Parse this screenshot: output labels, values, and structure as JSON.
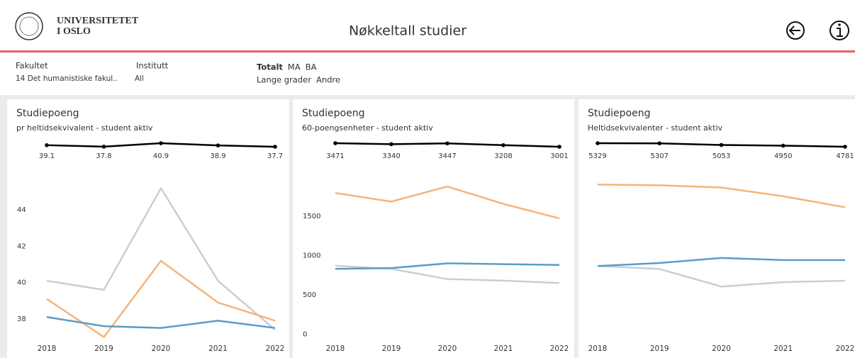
{
  "header": {
    "logo_line1": "UNIVERSITETET",
    "logo_line2": "I OSLO",
    "title": "Nøkkeltall studier"
  },
  "filters": [
    {
      "label": "Fakultet",
      "value": "14 Det humanistiske fakul.."
    },
    {
      "label": "Institutt",
      "value": "All"
    }
  ],
  "legend": [
    {
      "label": "Totalt",
      "color": "#222222"
    },
    {
      "label": "MA",
      "color": "#5ba3cf"
    },
    {
      "label": "BA",
      "color": "#f5b47a"
    },
    {
      "label": "Lange grader",
      "color": "#555555"
    },
    {
      "label": "Andre",
      "color": "#9a9a9a"
    }
  ],
  "chart_data": [
    {
      "type": "line",
      "title": "Studiepoeng",
      "subtitle": "pr heltidsekvivalent - student aktiv",
      "categories": [
        "2018",
        "2019",
        "2020",
        "2021",
        "2022"
      ],
      "total": {
        "color": "#000000",
        "values": [
          39.1,
          37.8,
          40.9,
          38.9,
          37.7
        ]
      },
      "series": [
        {
          "color": "#c9ced6",
          "values": [
            40.1,
            39.6,
            45.2,
            40.1,
            37.4
          ]
        },
        {
          "color": "#f5b47a",
          "values": [
            39.1,
            37.0,
            41.2,
            38.9,
            37.9
          ]
        },
        {
          "color": "#5b9bc8",
          "values": [
            38.1,
            37.6,
            37.5,
            37.9,
            37.5
          ]
        }
      ],
      "ylim": [
        36.9,
        46
      ],
      "yticks": [
        38,
        40,
        42,
        44
      ]
    },
    {
      "type": "line",
      "title": "Studiepoeng",
      "subtitle": "60-poengsenheter - student aktiv",
      "categories": [
        "2018",
        "2019",
        "2020",
        "2021",
        "2022"
      ],
      "total": {
        "color": "#000000",
        "values": [
          3471,
          3340,
          3447,
          3208,
          3001
        ]
      },
      "series": [
        {
          "color": "#c9ced6",
          "values": [
            870,
            830,
            700,
            680,
            650
          ]
        },
        {
          "color": "#f5b47a",
          "values": [
            1795,
            1685,
            1877,
            1656,
            1472
          ]
        },
        {
          "color": "#5b9bc8",
          "values": [
            830,
            840,
            900,
            890,
            880
          ]
        }
      ],
      "ylim": [
        -60,
        2040
      ],
      "yticks": [
        0,
        500,
        1000,
        1500
      ]
    },
    {
      "type": "line",
      "title": "Studiepoeng",
      "subtitle": "Heltidsekvivalenter - student aktiv",
      "categories": [
        "2018",
        "2019",
        "2020",
        "2021",
        "2022"
      ],
      "total": {
        "color": "#000000",
        "values": [
          5329,
          5307,
          5053,
          4950,
          4781
        ]
      },
      "series": [
        {
          "color": "#c9ced6",
          "values": [
            1330,
            1273,
            930,
            1016,
            1044
          ]
        },
        {
          "color": "#f5b47a",
          "values": [
            2918,
            2904,
            2861,
            2690,
            2475
          ]
        },
        {
          "color": "#5b9bc8",
          "values": [
            1330,
            1388,
            1488,
            1445,
            1445
          ]
        }
      ],
      "ylim": [
        -90,
        3130
      ]
    }
  ]
}
